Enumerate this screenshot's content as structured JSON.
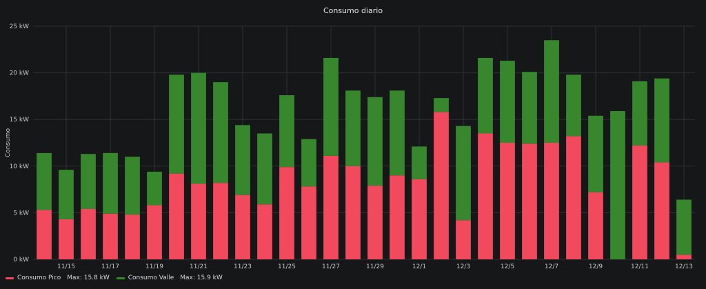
{
  "chart_data": {
    "type": "bar",
    "stacked": true,
    "title": "Consumo diario",
    "ylabel": "Consumo",
    "xlabel": "",
    "ylim": [
      0,
      25
    ],
    "yticks": [
      "0 kW",
      "5 kW",
      "10 kW",
      "15 kW",
      "20 kW",
      "25 kW"
    ],
    "grid": true,
    "legend_position": "bottom-left",
    "categories": [
      "11/14",
      "11/15",
      "11/16",
      "11/17",
      "11/18",
      "11/19",
      "11/20",
      "11/21",
      "11/22",
      "11/23",
      "11/24",
      "11/25",
      "11/26",
      "11/27",
      "11/28",
      "11/29",
      "11/30",
      "12/1",
      "12/2",
      "12/3",
      "12/4",
      "12/5",
      "12/6",
      "12/7",
      "12/8",
      "12/9",
      "12/10",
      "12/11",
      "12/12",
      "12/13"
    ],
    "xtick_labels": [
      "11/15",
      "11/17",
      "11/19",
      "11/21",
      "11/23",
      "11/25",
      "11/27",
      "11/29",
      "12/1",
      "12/3",
      "12/5",
      "12/7",
      "12/9",
      "12/11",
      "12/13"
    ],
    "series": [
      {
        "name": "Consumo Pico",
        "color": "#f2495c",
        "values": [
          5.3,
          4.3,
          5.4,
          4.9,
          4.8,
          5.8,
          9.2,
          8.1,
          8.2,
          6.9,
          5.9,
          9.9,
          7.8,
          11.1,
          10.0,
          7.9,
          9.0,
          8.6,
          15.8,
          4.2,
          13.5,
          12.5,
          12.4,
          12.5,
          13.2,
          7.2,
          0.0,
          12.2,
          10.4,
          0.5
        ]
      },
      {
        "name": "Consumo Valle",
        "color": "#37872d",
        "values": [
          6.1,
          5.3,
          5.9,
          6.5,
          6.2,
          3.6,
          10.6,
          11.9,
          10.8,
          7.5,
          7.6,
          7.7,
          5.1,
          10.5,
          8.1,
          9.5,
          9.1,
          3.5,
          1.5,
          10.1,
          8.1,
          8.8,
          7.7,
          11.0,
          6.6,
          8.2,
          15.9,
          6.9,
          9.0,
          5.9
        ]
      }
    ]
  },
  "legend": {
    "items": [
      {
        "label": "Consumo Pico",
        "max": "Max: 15.8 kW",
        "color": "#f2495c"
      },
      {
        "label": "Consumo Valle",
        "max": "Max: 15.9 kW",
        "color": "#37872d"
      }
    ]
  }
}
